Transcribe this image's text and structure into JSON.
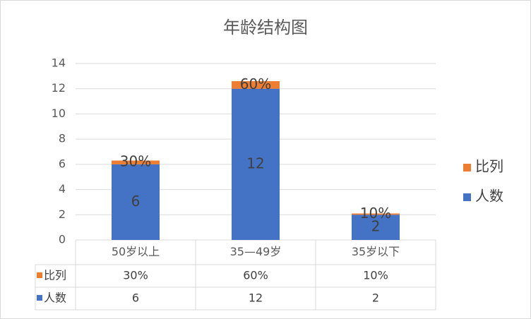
{
  "chart_data": {
    "type": "stacked_bar",
    "title": "年龄结构图",
    "categories": [
      "50岁以上",
      "35—49岁",
      "35岁以下"
    ],
    "series": [
      {
        "name": "人数",
        "color": "#4472c4",
        "values": [
          6,
          12,
          2
        ]
      },
      {
        "name": "比列",
        "color": "#ed7d31",
        "values": [
          0.3,
          0.6,
          0.1
        ],
        "value_labels": [
          "30%",
          "60%",
          "10%"
        ]
      }
    ],
    "ylim": [
      0,
      14
    ],
    "yticks": [
      0,
      2,
      4,
      6,
      8,
      10,
      12,
      14
    ],
    "grid": true,
    "legend": "right",
    "data_table": true
  }
}
